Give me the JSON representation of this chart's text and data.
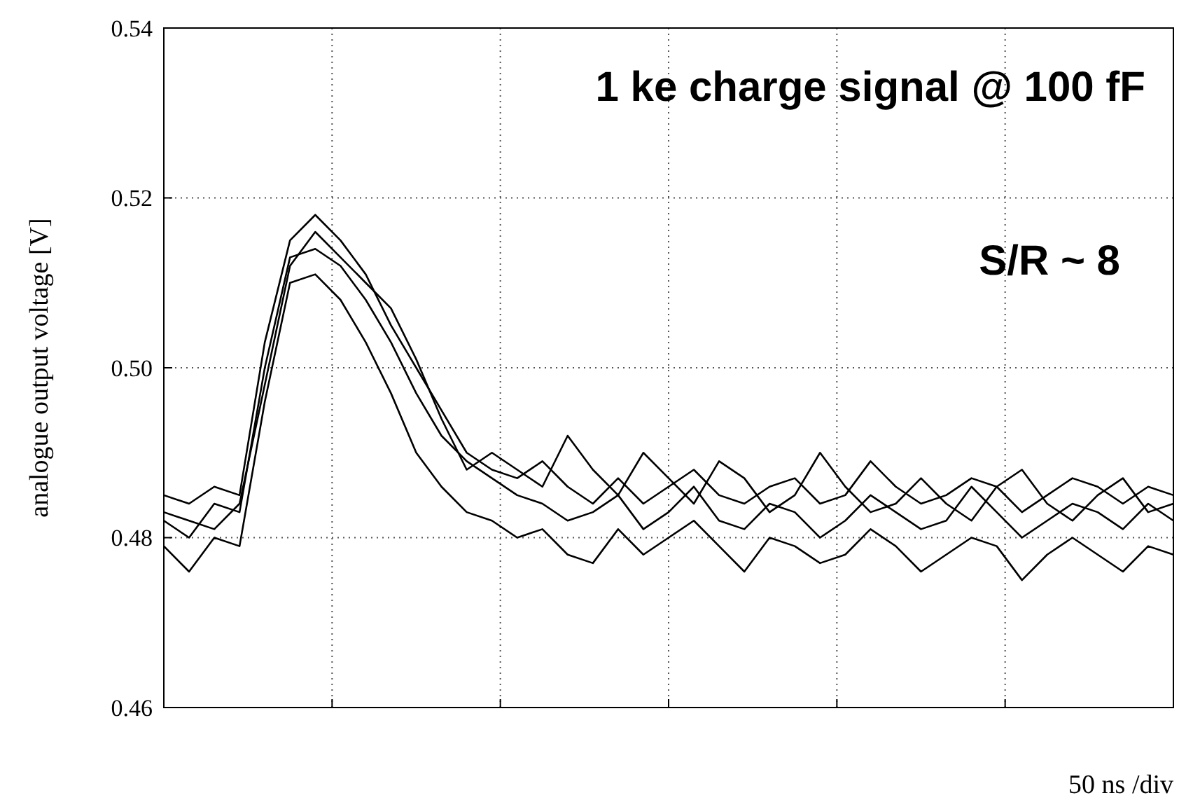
{
  "chart_data": {
    "type": "line",
    "xlabel": "50 ns /div",
    "ylabel": "analogue output voltage [V]",
    "annotations": [
      "1 ke charge signal @ 100 fF",
      "S/R ~ 8"
    ],
    "categories": [
      null,
      null,
      null,
      null,
      null,
      null,
      null,
      null,
      null,
      null,
      null,
      null,
      null,
      null,
      null,
      null,
      null,
      null,
      null,
      null,
      null,
      null,
      null,
      null,
      null,
      null,
      null,
      null,
      null,
      null,
      null,
      null,
      null,
      null,
      null,
      null,
      null,
      null,
      null,
      null,
      null
    ],
    "ylim": [
      0.46,
      0.54
    ],
    "yticks": [
      {
        "value": 0.46,
        "label": "0.46"
      },
      {
        "value": 0.48,
        "label": "0.48"
      },
      {
        "value": 0.5,
        "label": "0.50"
      },
      {
        "value": 0.52,
        "label": "0.52"
      },
      {
        "value": 0.54,
        "label": "0.54"
      }
    ],
    "tick_labels": "y",
    "grid": true,
    "marker": "none",
    "line_style": "solid",
    "series": [
      {
        "color": "#000000",
        "values": [
          0.482,
          0.48,
          0.484,
          0.483,
          0.5,
          0.513,
          0.514,
          0.512,
          0.508,
          0.503,
          0.497,
          0.492,
          0.489,
          0.487,
          0.485,
          0.484,
          0.482,
          0.483,
          0.485,
          0.481,
          0.483,
          0.486,
          0.482,
          0.481,
          0.484,
          0.483,
          0.48,
          0.482,
          0.485,
          0.483,
          0.481,
          0.482,
          0.486,
          0.483,
          0.48,
          0.482,
          0.484,
          0.483,
          0.481,
          0.484,
          0.482
        ]
      },
      {
        "color": "#000000",
        "values": [
          0.485,
          0.484,
          0.486,
          0.485,
          0.503,
          0.515,
          0.518,
          0.515,
          0.511,
          0.505,
          0.5,
          0.495,
          0.49,
          0.488,
          0.487,
          0.489,
          0.486,
          0.484,
          0.487,
          0.484,
          0.486,
          0.488,
          0.485,
          0.484,
          0.486,
          0.487,
          0.484,
          0.485,
          0.489,
          0.486,
          0.484,
          0.485,
          0.487,
          0.486,
          0.483,
          0.485,
          0.487,
          0.486,
          0.484,
          0.486,
          0.485
        ]
      },
      {
        "color": "#000000",
        "values": [
          0.479,
          0.476,
          0.48,
          0.479,
          0.496,
          0.51,
          0.511,
          0.508,
          0.503,
          0.497,
          0.49,
          0.486,
          0.483,
          0.482,
          0.48,
          0.481,
          0.478,
          0.477,
          0.481,
          0.478,
          0.48,
          0.482,
          0.479,
          0.476,
          0.48,
          0.479,
          0.477,
          0.478,
          0.481,
          0.479,
          0.476,
          0.478,
          0.48,
          0.479,
          0.475,
          0.478,
          0.48,
          0.478,
          0.476,
          0.479,
          0.478
        ]
      },
      {
        "color": "#000000",
        "values": [
          0.483,
          0.482,
          0.481,
          0.484,
          0.498,
          0.512,
          0.516,
          0.513,
          0.51,
          0.507,
          0.501,
          0.494,
          0.488,
          0.49,
          0.488,
          0.486,
          0.492,
          0.488,
          0.485,
          0.49,
          0.487,
          0.484,
          0.489,
          0.487,
          0.483,
          0.485,
          0.49,
          0.486,
          0.483,
          0.484,
          0.487,
          0.484,
          0.482,
          0.486,
          0.488,
          0.484,
          0.482,
          0.485,
          0.487,
          0.483,
          0.484
        ]
      }
    ]
  }
}
